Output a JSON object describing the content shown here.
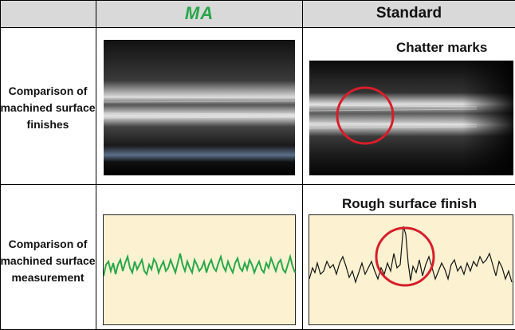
{
  "columns": {
    "label_col": "",
    "ma": "MA",
    "standard": "Standard"
  },
  "rows": [
    {
      "label": "Comparison of machined surface finishes",
      "standard_note": "Chatter marks"
    },
    {
      "label": "Comparison of machined surface measurement",
      "standard_note": "Rough surface finish"
    }
  ],
  "colors": {
    "header_bg": "#d9d9d9",
    "ma_brand": "#27a64a",
    "graph_bg": "#fcf2d2",
    "ma_trace": "#2aa84a",
    "highlight_circle": "#d81e2a"
  }
}
